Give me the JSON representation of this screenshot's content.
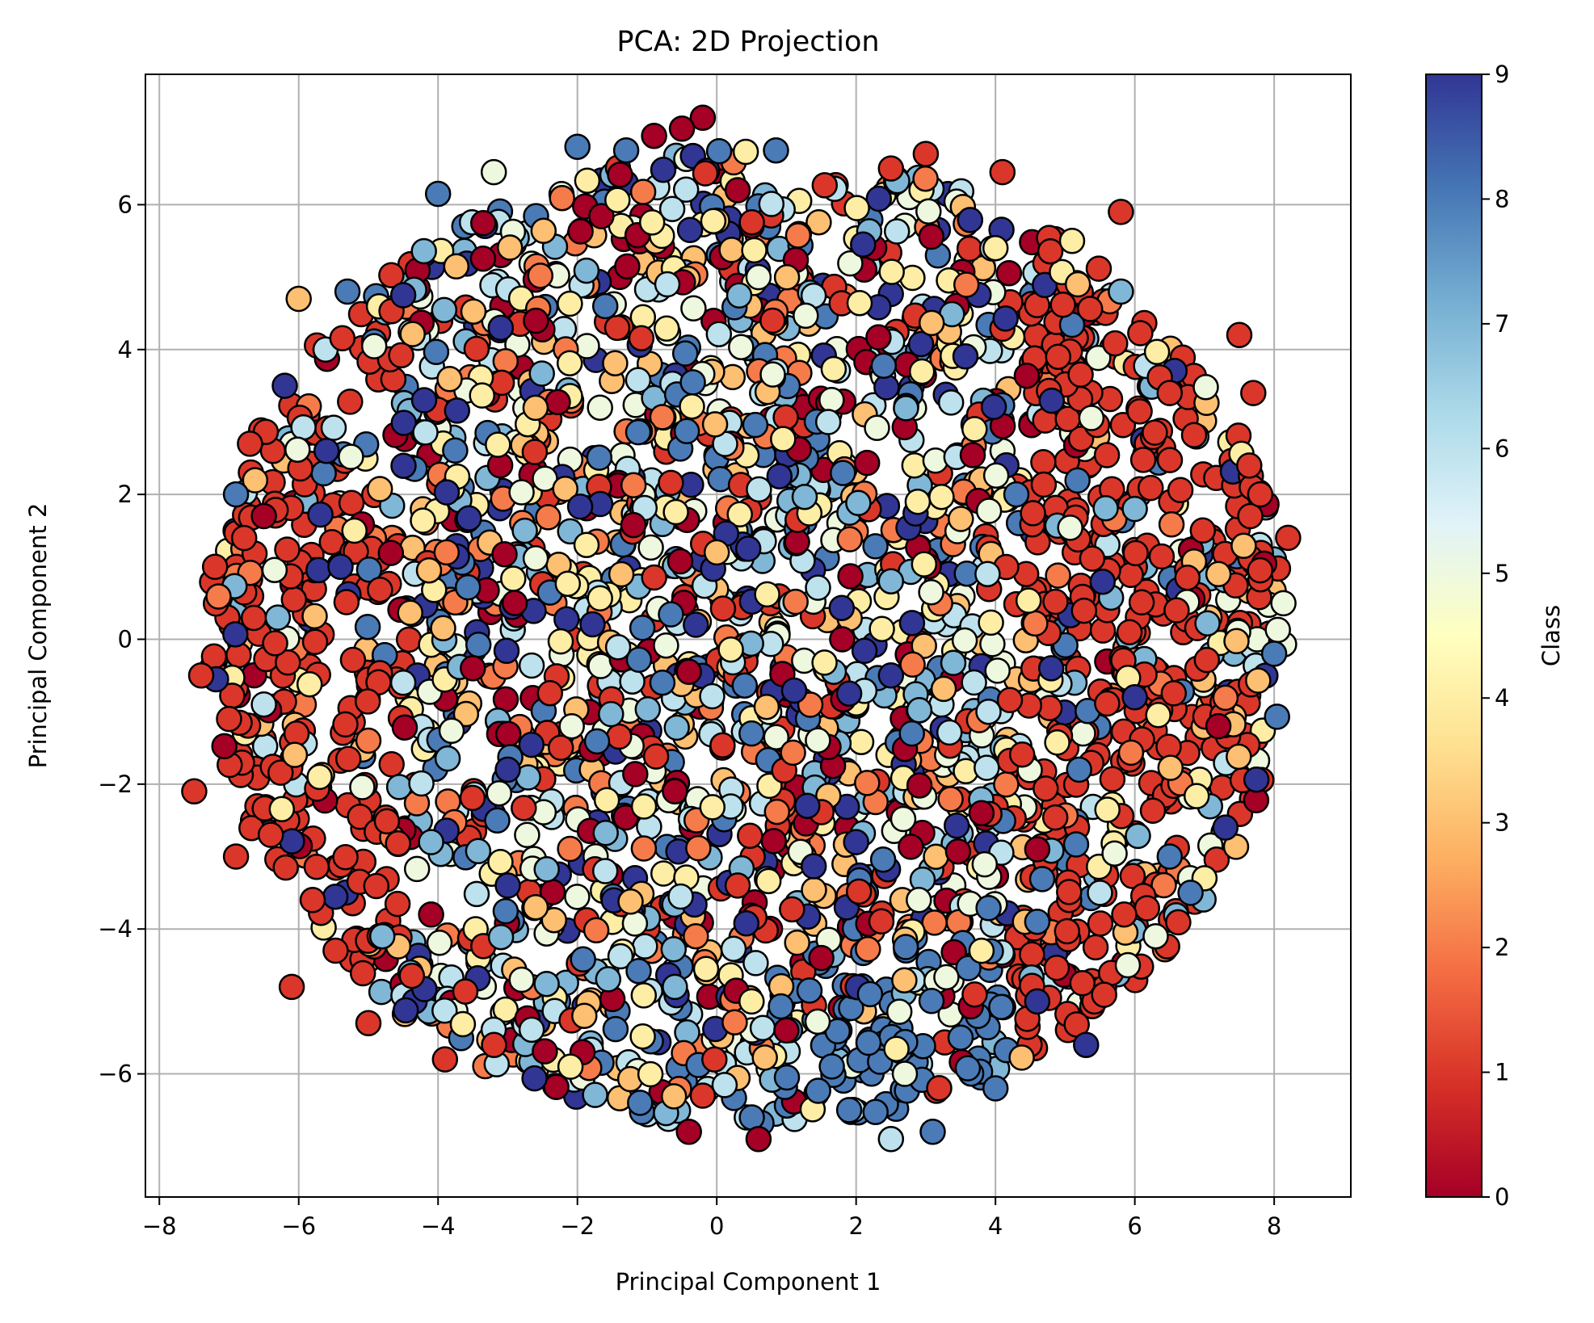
{
  "chart_data": {
    "type": "scatter",
    "title": "PCA: 2D Projection",
    "xlabel": "Principal Component 1",
    "ylabel": "Principal Component 2",
    "xlim": [
      -8.2,
      9.1
    ],
    "ylim": [
      -7.7,
      7.8
    ],
    "x_ticks": [
      -8,
      -6,
      -4,
      -2,
      0,
      2,
      4,
      6,
      8
    ],
    "y_ticks": [
      -6,
      -4,
      -2,
      0,
      2,
      4,
      6
    ],
    "x_tick_labels": [
      "−8",
      "−6",
      "−4",
      "−2",
      "0",
      "2",
      "4",
      "6",
      "8"
    ],
    "y_tick_labels": [
      "−6",
      "−4",
      "−2",
      "0",
      "2",
      "4",
      "6"
    ],
    "grid": true,
    "colormap": "RdYlBu",
    "colormap_stops": [
      "#a50026",
      "#d73027",
      "#f46d43",
      "#fdae61",
      "#fee090",
      "#ffffbf",
      "#e0f3f8",
      "#abd9e9",
      "#74add1",
      "#4575b4",
      "#313695"
    ],
    "marker_edge_color": "#000000",
    "colorbar": {
      "label": "Class",
      "min": 0,
      "max": 9,
      "ticks": [
        0,
        1,
        2,
        3,
        4,
        5,
        6,
        7,
        8,
        9
      ],
      "tick_labels": [
        "0",
        "1",
        "2",
        "3",
        "4",
        "5",
        "6",
        "7",
        "8",
        "9"
      ]
    },
    "points": [
      {
        "x": -0.2,
        "y": 7.2,
        "class": 0
      },
      {
        "x": -0.5,
        "y": 7.05,
        "class": 0
      },
      {
        "x": -0.9,
        "y": 6.95,
        "class": 0
      },
      {
        "x": -2.0,
        "y": 6.8,
        "class": 8
      },
      {
        "x": -1.3,
        "y": 6.75,
        "class": 8
      },
      {
        "x": 0.85,
        "y": 6.75,
        "class": 8
      },
      {
        "x": 3.0,
        "y": 6.7,
        "class": 1
      },
      {
        "x": 2.5,
        "y": 6.5,
        "class": 1
      },
      {
        "x": -3.2,
        "y": 6.45,
        "class": 5
      },
      {
        "x": 4.1,
        "y": 6.45,
        "class": 1
      },
      {
        "x": 0.3,
        "y": 6.2,
        "class": 0
      },
      {
        "x": -4.0,
        "y": 6.15,
        "class": 8
      },
      {
        "x": 5.8,
        "y": 5.9,
        "class": 1
      },
      {
        "x": 4.0,
        "y": 5.4,
        "class": 4
      },
      {
        "x": 2.1,
        "y": 5.45,
        "class": 9
      },
      {
        "x": 5.1,
        "y": 5.5,
        "class": 4
      },
      {
        "x": -6.0,
        "y": 4.7,
        "class": 3
      },
      {
        "x": -4.5,
        "y": 4.75,
        "class": 9
      },
      {
        "x": -5.3,
        "y": 4.8,
        "class": 8
      },
      {
        "x": 0.6,
        "y": 5.0,
        "class": 5
      },
      {
        "x": 5.8,
        "y": 4.8,
        "class": 7
      },
      {
        "x": 7.5,
        "y": 4.2,
        "class": 1
      },
      {
        "x": -6.2,
        "y": 3.5,
        "class": 9
      },
      {
        "x": -1.6,
        "y": 4.6,
        "class": 8
      },
      {
        "x": -3.1,
        "y": 4.3,
        "class": 9
      },
      {
        "x": 4.9,
        "y": 3.9,
        "class": 1
      },
      {
        "x": 6.5,
        "y": 3.4,
        "class": 1
      },
      {
        "x": 7.7,
        "y": 3.4,
        "class": 1
      },
      {
        "x": -4.2,
        "y": 3.3,
        "class": 9
      },
      {
        "x": 1.6,
        "y": 3.0,
        "class": 6
      },
      {
        "x": 3.7,
        "y": 2.9,
        "class": 4
      },
      {
        "x": -6.7,
        "y": 2.7,
        "class": 1
      },
      {
        "x": -5.6,
        "y": 2.6,
        "class": 9
      },
      {
        "x": 0.9,
        "y": 2.25,
        "class": 9
      },
      {
        "x": -6.9,
        "y": 2.0,
        "class": 8
      },
      {
        "x": 4.3,
        "y": 2.0,
        "class": 8
      },
      {
        "x": 7.8,
        "y": 2.0,
        "class": 1
      },
      {
        "x": -6.5,
        "y": 1.7,
        "class": 0
      },
      {
        "x": 6.0,
        "y": 1.8,
        "class": 7
      },
      {
        "x": -5.2,
        "y": 1.5,
        "class": 4
      },
      {
        "x": 8.2,
        "y": 1.4,
        "class": 1
      },
      {
        "x": 0.0,
        "y": 1.2,
        "class": 3
      },
      {
        "x": -7.2,
        "y": 1.0,
        "class": 1
      },
      {
        "x": -5.4,
        "y": 1.0,
        "class": 9
      },
      {
        "x": 2.5,
        "y": 0.8,
        "class": 7
      },
      {
        "x": 7.2,
        "y": 0.9,
        "class": 3
      },
      {
        "x": -2.9,
        "y": 0.5,
        "class": 0
      },
      {
        "x": -6.3,
        "y": 0.3,
        "class": 7
      },
      {
        "x": -0.3,
        "y": 0.2,
        "class": 9
      },
      {
        "x": 6.6,
        "y": 0.4,
        "class": 1
      },
      {
        "x": -7.4,
        "y": -0.5,
        "class": 1
      },
      {
        "x": 1.8,
        "y": 0.0,
        "class": 0
      },
      {
        "x": -3.5,
        "y": -0.4,
        "class": 0
      },
      {
        "x": 4.8,
        "y": -0.4,
        "class": 9
      },
      {
        "x": 8.0,
        "y": -0.2,
        "class": 8
      },
      {
        "x": -0.4,
        "y": -0.45,
        "class": 0
      },
      {
        "x": 2.5,
        "y": -0.5,
        "class": 9
      },
      {
        "x": -6.5,
        "y": -0.9,
        "class": 6
      },
      {
        "x": 6.0,
        "y": -0.8,
        "class": 9
      },
      {
        "x": 1.9,
        "y": -0.75,
        "class": 9
      },
      {
        "x": 3.9,
        "y": -1.0,
        "class": 6
      },
      {
        "x": -4.5,
        "y": -0.6,
        "class": 6
      },
      {
        "x": 7.2,
        "y": -1.2,
        "class": 0
      },
      {
        "x": -7.0,
        "y": -1.1,
        "class": 1
      },
      {
        "x": 0.5,
        "y": -1.3,
        "class": 8
      },
      {
        "x": -5.0,
        "y": -1.4,
        "class": 2
      },
      {
        "x": 2.8,
        "y": -1.3,
        "class": 8
      },
      {
        "x": 5.2,
        "y": -1.8,
        "class": 8
      },
      {
        "x": -3.0,
        "y": -1.8,
        "class": 9
      },
      {
        "x": -7.5,
        "y": -2.1,
        "class": 1
      },
      {
        "x": -5.7,
        "y": -1.9,
        "class": 4
      },
      {
        "x": 3.8,
        "y": -2.4,
        "class": 0
      },
      {
        "x": 7.3,
        "y": -2.6,
        "class": 9
      },
      {
        "x": -0.6,
        "y": -2.1,
        "class": 0
      },
      {
        "x": 1.3,
        "y": -2.3,
        "class": 9
      },
      {
        "x": -4.1,
        "y": -2.8,
        "class": 7
      },
      {
        "x": 4.6,
        "y": -2.9,
        "class": 0
      },
      {
        "x": -6.4,
        "y": -2.7,
        "class": 1
      },
      {
        "x": 6.5,
        "y": -3.0,
        "class": 8
      },
      {
        "x": -1.6,
        "y": -3.2,
        "class": 6
      },
      {
        "x": 2.0,
        "y": -2.8,
        "class": 9
      },
      {
        "x": -3.0,
        "y": -3.4,
        "class": 9
      },
      {
        "x": 7.0,
        "y": -3.3,
        "class": 4
      },
      {
        "x": -6.9,
        "y": -3.0,
        "class": 1
      },
      {
        "x": 0.3,
        "y": -3.4,
        "class": 1
      },
      {
        "x": 5.5,
        "y": -3.5,
        "class": 6
      },
      {
        "x": 2.9,
        "y": -3.6,
        "class": 5
      },
      {
        "x": -2.6,
        "y": -3.7,
        "class": 3
      },
      {
        "x": -4.1,
        "y": -3.8,
        "class": 0
      },
      {
        "x": 6.8,
        "y": -3.5,
        "class": 8
      },
      {
        "x": -5.8,
        "y": -3.6,
        "class": 1
      },
      {
        "x": -0.3,
        "y": -4.1,
        "class": 2
      },
      {
        "x": 4.6,
        "y": -3.9,
        "class": 8
      },
      {
        "x": 6.3,
        "y": -4.1,
        "class": 5
      },
      {
        "x": -4.8,
        "y": -4.1,
        "class": 7
      },
      {
        "x": 3.8,
        "y": -4.3,
        "class": 4
      },
      {
        "x": 1.5,
        "y": -4.4,
        "class": 0
      },
      {
        "x": -2.8,
        "y": -4.7,
        "class": 5
      },
      {
        "x": -6.1,
        "y": -4.8,
        "class": 1
      },
      {
        "x": 5.9,
        "y": -4.5,
        "class": 5
      },
      {
        "x": -0.6,
        "y": -4.8,
        "class": 7
      },
      {
        "x": 2.2,
        "y": -4.9,
        "class": 8
      },
      {
        "x": 4.6,
        "y": -5.0,
        "class": 9
      },
      {
        "x": -5.0,
        "y": -5.3,
        "class": 1
      },
      {
        "x": 0.5,
        "y": -5.0,
        "class": 4
      },
      {
        "x": -1.9,
        "y": -5.2,
        "class": 3
      },
      {
        "x": 3.5,
        "y": -5.5,
        "class": 8
      },
      {
        "x": 1.0,
        "y": -5.4,
        "class": 0
      },
      {
        "x": -3.9,
        "y": -5.8,
        "class": 1
      },
      {
        "x": 5.3,
        "y": -5.6,
        "class": 9
      },
      {
        "x": -2.1,
        "y": -5.9,
        "class": 4
      },
      {
        "x": 2.7,
        "y": -6.0,
        "class": 5
      },
      {
        "x": -0.2,
        "y": -6.3,
        "class": 1
      },
      {
        "x": 4.0,
        "y": -6.2,
        "class": 8
      },
      {
        "x": 1.9,
        "y": -6.5,
        "class": 8
      },
      {
        "x": -1.1,
        "y": -6.4,
        "class": 8
      },
      {
        "x": 3.1,
        "y": -6.8,
        "class": 8
      },
      {
        "x": 0.6,
        "y": -6.9,
        "class": 0
      },
      {
        "x": -0.4,
        "y": -6.8,
        "class": 0
      },
      {
        "x": 2.5,
        "y": -6.9,
        "class": 6
      }
    ]
  }
}
